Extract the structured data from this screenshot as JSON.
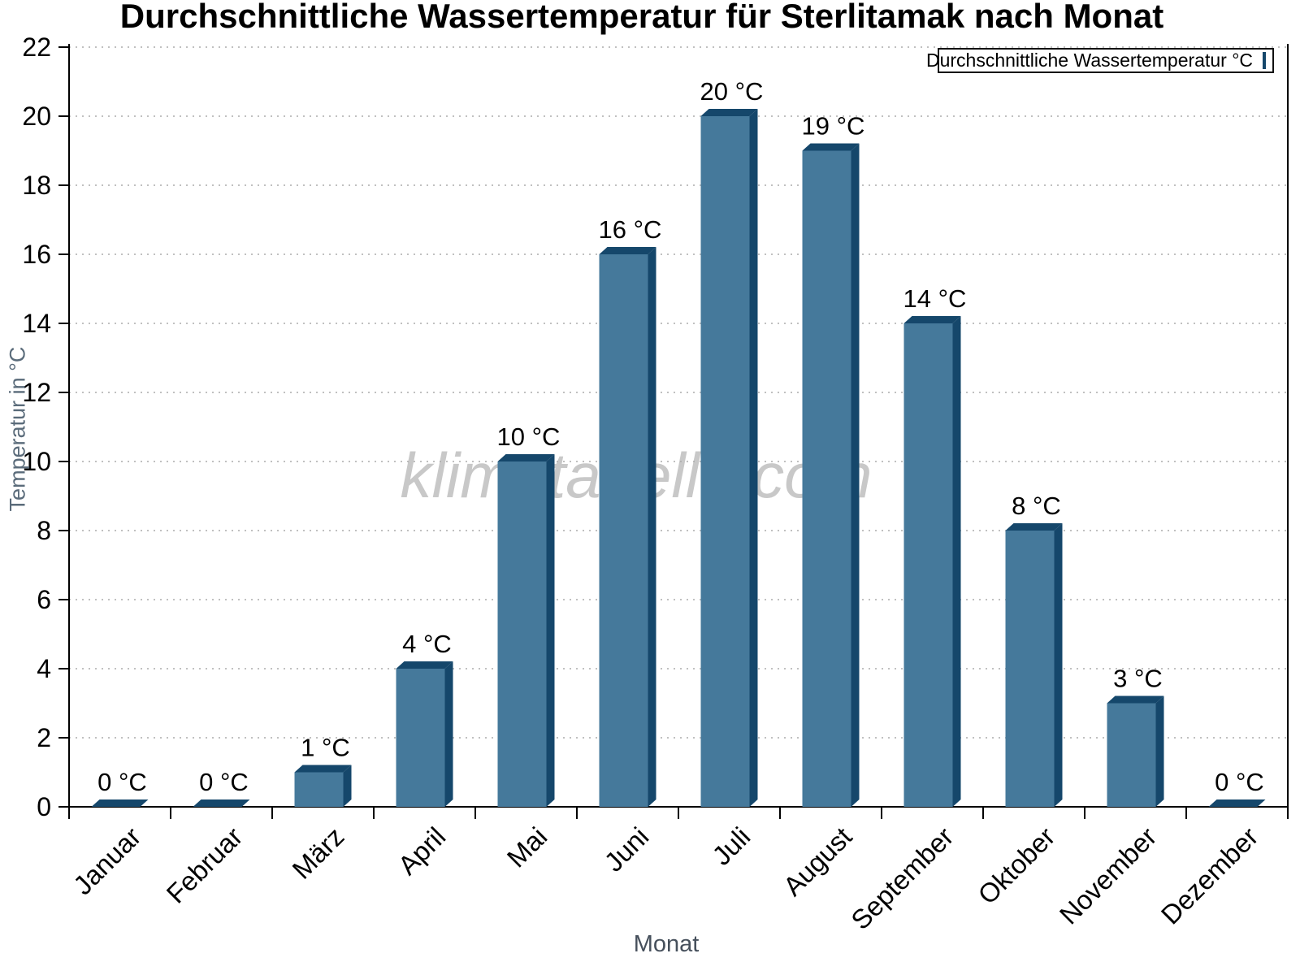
{
  "chart": {
    "title": "Durchschnittliche Wassertemperatur für Sterlitamak nach Monat",
    "watermark": "klimatabelle.com",
    "legend_label": "Durchschnittliche Wassertemperatur °C",
    "ylabel": "Temperatur in °C",
    "xlabel": "Monat"
  },
  "chart_data": {
    "type": "bar",
    "title": "Durchschnittliche Wassertemperatur für Sterlitamak nach Monat",
    "categories": [
      "Januar",
      "Februar",
      "März",
      "April",
      "Mai",
      "Juni",
      "Juli",
      "August",
      "September",
      "Oktober",
      "November",
      "Dezember"
    ],
    "values": [
      0,
      0,
      1,
      4,
      10,
      16,
      20,
      19,
      14,
      8,
      3,
      0
    ],
    "bar_labels": [
      "0 °C",
      "0 °C",
      "1 °C",
      "4 °C",
      "10 °C",
      "16 °C",
      "20 °C",
      "19 °C",
      "14 °C",
      "8 °C",
      "3 °C",
      "0 °C"
    ],
    "xlabel": "Monat",
    "ylabel": "Temperatur in °C",
    "ylim": [
      0,
      22
    ],
    "ytick_step": 2,
    "ytick_labels": [
      "0",
      "2",
      "4",
      "6",
      "8",
      "10",
      "12",
      "14",
      "16",
      "18",
      "20",
      "22"
    ],
    "grid": "horizontal-dotted",
    "legend": [
      "Durchschnittliche Wassertemperatur °C"
    ],
    "legend_position": "top-right",
    "watermark": "klimatabelle.com",
    "colors": {
      "bar_face": "#45799B",
      "bar_side": "#15476B",
      "grid": "#ababab",
      "axis": "#000000",
      "tick_label": "#000000",
      "watermark": "#c8c8c8",
      "y_axis_title": "#5a6b7a",
      "x_axis_title": "#46505c"
    }
  }
}
